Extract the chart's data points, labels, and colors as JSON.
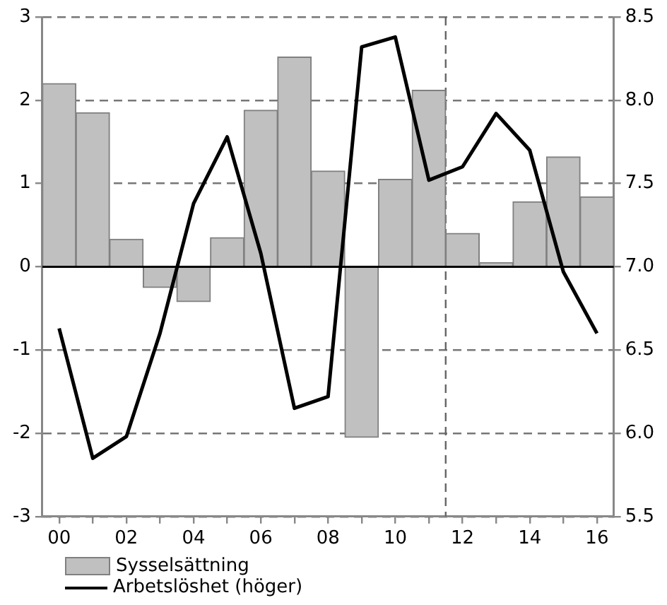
{
  "chart_data": {
    "type": "bar",
    "x": [
      2000,
      2001,
      2002,
      2003,
      2004,
      2005,
      2006,
      2007,
      2008,
      2009,
      2010,
      2011,
      2012,
      2013,
      2014,
      2015,
      2016
    ],
    "xlim": [
      1999.5,
      2016.5
    ],
    "xticks": [
      {
        "value": 2000,
        "label": "00"
      },
      {
        "value": 2001,
        "label": null
      },
      {
        "value": 2002,
        "label": "02"
      },
      {
        "value": 2003,
        "label": null
      },
      {
        "value": 2004,
        "label": "04"
      },
      {
        "value": 2005,
        "label": null
      },
      {
        "value": 2006,
        "label": "06"
      },
      {
        "value": 2007,
        "label": null
      },
      {
        "value": 2008,
        "label": "08"
      },
      {
        "value": 2009,
        "label": null
      },
      {
        "value": 2010,
        "label": "10"
      },
      {
        "value": 2011,
        "label": null
      },
      {
        "value": 2012,
        "label": "12"
      },
      {
        "value": 2013,
        "label": null
      },
      {
        "value": 2014,
        "label": "14"
      },
      {
        "value": 2015,
        "label": null
      },
      {
        "value": 2016,
        "label": "16"
      }
    ],
    "ylim": [
      -3,
      3
    ],
    "yticks": [
      -3,
      -2,
      -1,
      0,
      1,
      2,
      3
    ],
    "y2lim": [
      5.5,
      8.5
    ],
    "y2ticks": [
      5.5,
      {
        "value": 6,
        "label": "6.0"
      },
      6.5,
      {
        "value": 7,
        "label": "7.0"
      },
      7.5,
      {
        "value": 8,
        "label": "8.0"
      },
      8.5
    ],
    "grid": "y",
    "legend": "bottom left",
    "marker": "none",
    "ref_lines": [
      {
        "axis": "x",
        "value": 2011.5,
        "line_style": "dashed",
        "color": "#666666"
      }
    ],
    "series": [
      {
        "name": "Sysselsättning",
        "color": "#c0c0c0",
        "values": [
          2.2,
          1.85,
          0.33,
          -0.25,
          -0.42,
          0.35,
          1.88,
          2.52,
          1.15,
          -2.05,
          1.05,
          2.12,
          0.4,
          0.05,
          0.78,
          1.32,
          0.84
        ]
      },
      {
        "name": "Arbetslöshet (höger)",
        "type": "line",
        "axis": "y2",
        "color": "#000000",
        "line_style": "solid",
        "values": [
          6.63,
          5.85,
          5.98,
          6.6,
          7.38,
          7.78,
          7.08,
          6.15,
          6.22,
          8.32,
          8.38,
          7.52,
          7.6,
          7.92,
          7.7,
          6.97,
          6.6
        ]
      }
    ]
  }
}
